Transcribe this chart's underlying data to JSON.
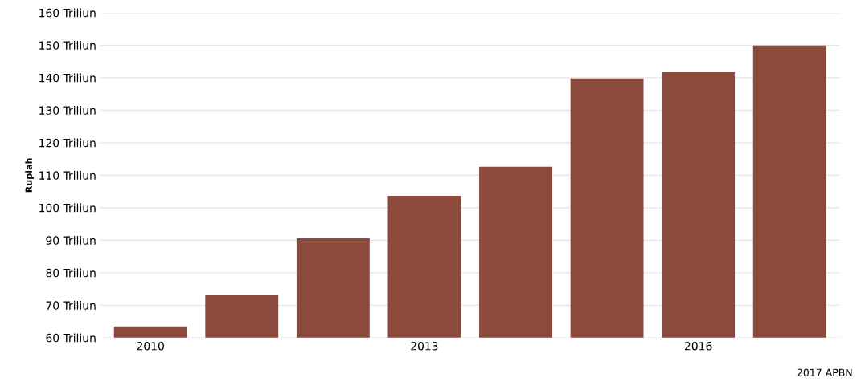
{
  "chart_data": {
    "type": "bar",
    "ylabel": "Rupiah",
    "categories": [
      "2010",
      null,
      null,
      "2013",
      null,
      null,
      "2016",
      null
    ],
    "values": [
      63.5,
      73.1,
      90.6,
      103.7,
      112.6,
      139.8,
      141.7,
      149.9
    ],
    "color": "#8b4a3c",
    "ylim": [
      60,
      160
    ],
    "yticks": [
      {
        "value": 60,
        "label": "60 Triliun"
      },
      {
        "value": 70,
        "label": "70 Triliun"
      },
      {
        "value": 80,
        "label": "80 Triliun"
      },
      {
        "value": 90,
        "label": "90 Triliun"
      },
      {
        "value": 100,
        "label": "100 Triliun"
      },
      {
        "value": 110,
        "label": "110 Triliun"
      },
      {
        "value": 120,
        "label": "120 Triliun"
      },
      {
        "value": 130,
        "label": "130 Triliun"
      },
      {
        "value": 140,
        "label": "140 Triliun"
      },
      {
        "value": 150,
        "label": "150 Triliun"
      },
      {
        "value": 160,
        "label": "160 Triliun"
      }
    ],
    "grid": "y",
    "legend": false,
    "annotations": [
      "2017 APBN"
    ]
  }
}
